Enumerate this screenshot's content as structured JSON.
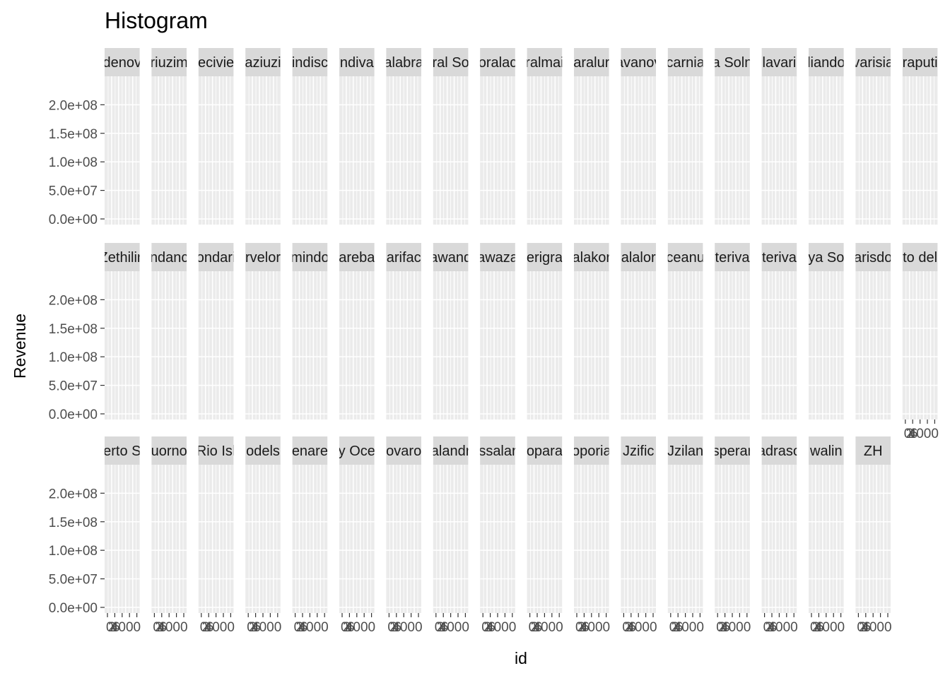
{
  "chart_data": {
    "type": "bar",
    "title": "Histogram",
    "xlabel": "id",
    "ylabel": "Revenue",
    "ylim": [
      0,
      240000000
    ],
    "yticks": [
      0,
      50000000,
      100000000,
      150000000,
      200000000
    ],
    "ytick_labels": [
      "0.0e+00",
      "5.0e+07",
      "1.0e+08",
      "1.5e+08",
      "2.0e+08"
    ],
    "xtick_labels": [
      "0",
      "2",
      "4",
      "6",
      "4000"
    ],
    "panel_label_text": {
      "row1": [
        "denov",
        "riuzim",
        "ecivie",
        "aziuzi",
        "indisc",
        "ndiva",
        "alabra",
        "ral So",
        "oralac",
        "ralmai",
        "aralur",
        "avanov",
        "carnia",
        "a Soln",
        "lavari",
        "liando",
        "varisia",
        "raputi"
      ],
      "row2": [
        "Zethilin",
        "ndanc",
        "ondari",
        "rvelor",
        "mindo",
        "areba",
        "arifac",
        "awand",
        "awaza",
        "erigra",
        "alakor",
        "alalor",
        "ceanu",
        "terivа",
        "teriva",
        "ya So",
        "arisdo",
        "to del"
      ],
      "row3": [
        "erto S",
        "uorno",
        "Rio Isl",
        "odels",
        "enare",
        "y Oce",
        "ovaro",
        "alandr",
        "ssalar",
        "opara",
        "oporia",
        "Jzific",
        "Jzilan",
        "sperar",
        "adraso",
        "walin",
        "ZH"
      ]
    },
    "panels": [],
    "series": [
      {
        "name": "Revenue",
        "values": []
      }
    ],
    "grid": true
  }
}
